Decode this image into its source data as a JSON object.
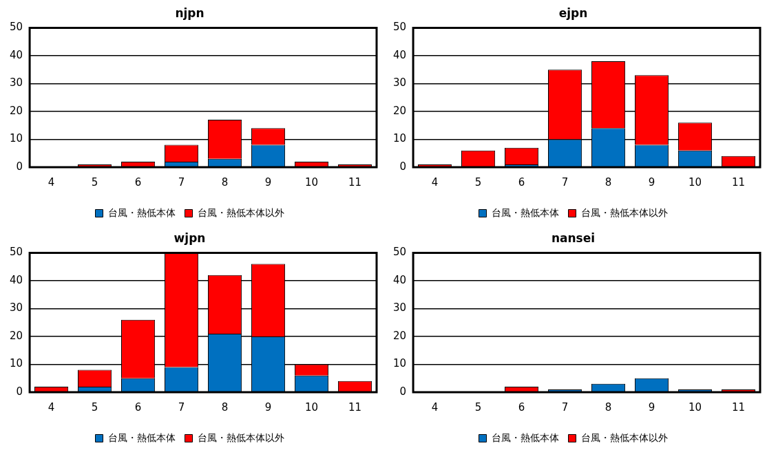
{
  "chart_data": [
    {
      "type": "bar",
      "title": "njpn",
      "categories": [
        "4",
        "5",
        "6",
        "7",
        "8",
        "9",
        "10",
        "11"
      ],
      "stacked": true,
      "ylim": [
        0,
        50
      ],
      "yticks": [
        0,
        10,
        20,
        30,
        40,
        50
      ],
      "grid": "y",
      "legend": "bottom",
      "series": [
        {
          "name": "台風・熱低本体",
          "color": "#0070c0",
          "values": [
            0,
            0,
            0,
            2,
            3,
            8,
            0,
            0
          ]
        },
        {
          "name": "台風・熱低本体以外",
          "color": "#ff0000",
          "values": [
            0,
            1,
            2,
            6,
            14,
            6,
            2,
            1
          ]
        }
      ]
    },
    {
      "type": "bar",
      "title": "ejpn",
      "categories": [
        "4",
        "5",
        "6",
        "7",
        "8",
        "9",
        "10",
        "11"
      ],
      "stacked": true,
      "ylim": [
        0,
        50
      ],
      "yticks": [
        0,
        10,
        20,
        30,
        40,
        50
      ],
      "grid": "y",
      "legend": "bottom",
      "series": [
        {
          "name": "台風・熱低本体",
          "color": "#0070c0",
          "values": [
            0,
            0,
            1,
            10,
            14,
            8,
            6,
            0
          ]
        },
        {
          "name": "台風・熱低本体以外",
          "color": "#ff0000",
          "values": [
            1,
            6,
            6,
            25,
            24,
            25,
            10,
            4
          ]
        }
      ]
    },
    {
      "type": "bar",
      "title": "wjpn",
      "categories": [
        "4",
        "5",
        "6",
        "7",
        "8",
        "9",
        "10",
        "11"
      ],
      "stacked": true,
      "ylim": [
        0,
        50
      ],
      "yticks": [
        0,
        10,
        20,
        30,
        40,
        50
      ],
      "grid": "y",
      "legend": "bottom",
      "series": [
        {
          "name": "台風・熱低本体",
          "color": "#0070c0",
          "values": [
            0,
            2,
            5,
            9,
            21,
            20,
            6,
            0
          ]
        },
        {
          "name": "台風・熱低本体以外",
          "color": "#ff0000",
          "values": [
            2,
            6,
            21,
            41,
            21,
            26,
            4,
            4
          ]
        }
      ]
    },
    {
      "type": "bar",
      "title": "nansei",
      "categories": [
        "4",
        "5",
        "6",
        "7",
        "8",
        "9",
        "10",
        "11"
      ],
      "stacked": true,
      "ylim": [
        0,
        50
      ],
      "yticks": [
        0,
        10,
        20,
        30,
        40,
        50
      ],
      "grid": "y",
      "legend": "bottom",
      "series": [
        {
          "name": "台風・熱低本体",
          "color": "#0070c0",
          "values": [
            0,
            0,
            0,
            1,
            3,
            5,
            1,
            0
          ]
        },
        {
          "name": "台風・熱低本体以外",
          "color": "#ff0000",
          "values": [
            0,
            0,
            2,
            0,
            0,
            0,
            0,
            1
          ]
        }
      ]
    }
  ]
}
